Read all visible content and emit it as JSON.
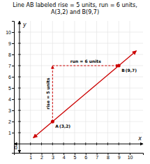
{
  "chart_data": {
    "type": "line",
    "title": "Line AB labeled rise = 5 units, run = 6 units,",
    "subtitle": "A(3,2) and B(9,7)",
    "xlabel": "x",
    "ylabel": "y",
    "xlim": [
      -0.5,
      11.2
    ],
    "ylim": [
      -0.8,
      11.0
    ],
    "xticks": [
      1,
      2,
      3,
      4,
      5,
      6,
      7,
      8,
      9,
      10
    ],
    "yticks": [
      1,
      2,
      3,
      4,
      5,
      6,
      7,
      8,
      9,
      10
    ],
    "grid": true,
    "series": [
      {
        "type": "line",
        "color": "#cc0000",
        "line_style": "solid",
        "x": [
          1.25,
          10.6
        ],
        "values": [
          0.5416666666666667,
          8.333333333333334
        ]
      },
      {
        "type": "scatter",
        "color": "#cc0000",
        "marker": "circle",
        "x": [
          3,
          9
        ],
        "values": [
          2,
          7
        ]
      },
      {
        "type": "line",
        "color": "#cc0000",
        "line_style": "dashed",
        "x": [
          3,
          3
        ],
        "values": [
          2,
          7
        ]
      },
      {
        "type": "line",
        "color": "#cc0000",
        "line_style": "dashed",
        "x": [
          3,
          9
        ],
        "values": [
          7,
          7
        ]
      }
    ],
    "annotations": [
      {
        "text": "A",
        "x": 3,
        "y": 2
      },
      {
        "text": "(3,2)",
        "x": 3,
        "y": 2
      },
      {
        "text": "B",
        "x": 9,
        "y": 7
      },
      {
        "text": "(9,7)",
        "x": 9,
        "y": 7
      },
      {
        "text": "rise = 5 units",
        "x": 3,
        "y": 4.5
      },
      {
        "text": "run = 6 units",
        "x": 6,
        "y": 7
      },
      {
        "text": "0",
        "x": 0,
        "y": 0
      }
    ]
  }
}
